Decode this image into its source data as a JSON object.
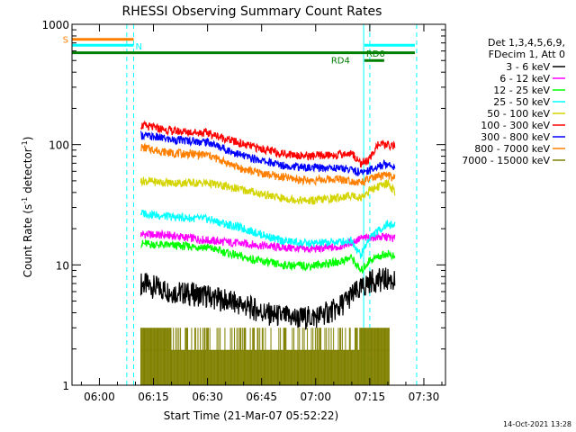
{
  "chart_data": {
    "type": "line",
    "title": "RHESSI Observing Summary Count Rates",
    "xlabel": "Start Time (21-Mar-07 05:52:22)",
    "ylabel_main": "Count Rate (s",
    "ylabel_sup1": "-1",
    "ylabel_mid": " detector",
    "ylabel_sup2": "-1",
    "ylabel_end": ")",
    "yscale": "log",
    "ylim": [
      1,
      1000
    ],
    "xlim_minutes": [
      -7.6,
      96
    ],
    "x_ticks": [
      {
        "label": "06:00",
        "t": 0
      },
      {
        "label": "06:15",
        "t": 15
      },
      {
        "label": "06:30",
        "t": 30
      },
      {
        "label": "06:45",
        "t": 45
      },
      {
        "label": "07:00",
        "t": 60
      },
      {
        "label": "07:15",
        "t": 75
      },
      {
        "label": "07:30",
        "t": 90
      }
    ],
    "y_ticks": [
      {
        "label": "1",
        "v": 1
      },
      {
        "label": "10",
        "v": 10
      },
      {
        "label": "100",
        "v": 100
      },
      {
        "label": "1000",
        "v": 1000
      }
    ],
    "legend_header": [
      "Det 1,3,4,5,6,9,",
      "FDecim 1, Att 0"
    ],
    "series": [
      {
        "name": "3 - 6 keV",
        "color": "#000000",
        "points": [
          [
            11.5,
            7.0
          ],
          [
            20,
            6.0
          ],
          [
            30,
            5.5
          ],
          [
            40,
            4.6
          ],
          [
            48,
            3.8
          ],
          [
            55,
            3.6
          ],
          [
            60,
            3.7
          ],
          [
            66,
            4.3
          ],
          [
            70,
            5.6
          ],
          [
            72.5,
            6.2
          ],
          [
            75,
            7.3
          ],
          [
            80,
            7.6
          ],
          [
            82,
            7.3
          ]
        ]
      },
      {
        "name": "6 - 12 keV",
        "color": "#ff00ff",
        "points": [
          [
            11.5,
            18
          ],
          [
            20,
            17.5
          ],
          [
            30,
            16
          ],
          [
            40,
            15
          ],
          [
            50,
            14
          ],
          [
            58,
            13.5
          ],
          [
            66,
            14
          ],
          [
            70,
            15.5
          ],
          [
            72.5,
            16.5
          ],
          [
            75,
            17
          ],
          [
            80,
            17
          ],
          [
            82,
            16.5
          ]
        ]
      },
      {
        "name": "12 - 25 keV",
        "color": "#00ff00",
        "points": [
          [
            11.5,
            15
          ],
          [
            20,
            14.5
          ],
          [
            30,
            14
          ],
          [
            40,
            11.5
          ],
          [
            50,
            10
          ],
          [
            58,
            9.8
          ],
          [
            66,
            10.5
          ],
          [
            70,
            11.5
          ],
          [
            72.5,
            8.8
          ],
          [
            75,
            11
          ],
          [
            80,
            12.5
          ],
          [
            82,
            11.5
          ]
        ]
      },
      {
        "name": "25 - 50 keV",
        "color": "#00ffff",
        "points": [
          [
            11.5,
            27
          ],
          [
            20,
            25
          ],
          [
            30,
            24
          ],
          [
            40,
            20
          ],
          [
            50,
            16
          ],
          [
            58,
            15
          ],
          [
            66,
            15.5
          ],
          [
            70,
            16
          ],
          [
            72.5,
            12
          ],
          [
            75,
            17
          ],
          [
            80,
            22
          ],
          [
            82,
            21
          ]
        ]
      },
      {
        "name": "50 - 100 keV",
        "color": "#d4d400",
        "points": [
          [
            11.5,
            50
          ],
          [
            20,
            48
          ],
          [
            30,
            48
          ],
          [
            40,
            42
          ],
          [
            50,
            36
          ],
          [
            58,
            34
          ],
          [
            66,
            36
          ],
          [
            70,
            38
          ],
          [
            72.5,
            36
          ],
          [
            75,
            42
          ],
          [
            80,
            48
          ],
          [
            82,
            40
          ]
        ]
      },
      {
        "name": "100 - 300 keV",
        "color": "#ff0000",
        "points": [
          [
            11.5,
            145
          ],
          [
            20,
            130
          ],
          [
            30,
            125
          ],
          [
            40,
            100
          ],
          [
            50,
            85
          ],
          [
            58,
            80
          ],
          [
            66,
            82
          ],
          [
            70,
            85
          ],
          [
            72.5,
            70
          ],
          [
            75,
            75
          ],
          [
            77,
            100
          ],
          [
            82,
            98
          ]
        ]
      },
      {
        "name": "300 - 800 keV",
        "color": "#0000ff",
        "points": [
          [
            11.5,
            120
          ],
          [
            20,
            110
          ],
          [
            30,
            105
          ],
          [
            40,
            80
          ],
          [
            50,
            68
          ],
          [
            58,
            64
          ],
          [
            66,
            64
          ],
          [
            70,
            62
          ],
          [
            72.5,
            58
          ],
          [
            75,
            62
          ],
          [
            80,
            70
          ],
          [
            82,
            65
          ]
        ]
      },
      {
        "name": "800 - 7000 keV",
        "color": "#ff8000",
        "points": [
          [
            11.5,
            95
          ],
          [
            20,
            85
          ],
          [
            30,
            82
          ],
          [
            40,
            62
          ],
          [
            50,
            54
          ],
          [
            58,
            50
          ],
          [
            66,
            52
          ],
          [
            70,
            50
          ],
          [
            72.5,
            48
          ],
          [
            75,
            52
          ],
          [
            80,
            56
          ],
          [
            82,
            52
          ]
        ]
      },
      {
        "name": "7000 - 15000 keV",
        "color": "#808000",
        "points": [
          [
            11.5,
            1.95
          ],
          [
            80.5,
            1.95
          ]
        ]
      }
    ],
    "flag_bars": [
      {
        "label": "S",
        "color": "#ff8000",
        "t0": -7.6,
        "t1": 9.5,
        "v": 750
      },
      {
        "label": "N",
        "color": "#00ffff",
        "t0": -7.6,
        "t1": 9.5,
        "v": 670
      },
      {
        "label": "",
        "color": "#00ffff",
        "t0": 73.5,
        "t1": 87.5,
        "v": 670
      },
      {
        "label": "RD0",
        "color": "#008000",
        "t0": 73.5,
        "t1": 79,
        "v": 500
      },
      {
        "label": "RD4",
        "color": "#008000",
        "t0": -7.6,
        "t1": 87.5,
        "v": 580
      }
    ],
    "vlines": [
      {
        "color": "#00c000",
        "t": -7.6
      },
      {
        "color": "#00ffff",
        "t": 7.6,
        "dashed": true
      },
      {
        "color": "#00ffff",
        "t": 9.5,
        "dashed": true
      },
      {
        "color": "#00ffff",
        "t": 73.3,
        "dashed": false
      },
      {
        "color": "#00ffff",
        "t": 75.0,
        "dashed": true
      },
      {
        "color": "#00ffff",
        "t": 88.0,
        "dashed": true
      }
    ],
    "footer": "14-Oct-2021 13:28"
  }
}
